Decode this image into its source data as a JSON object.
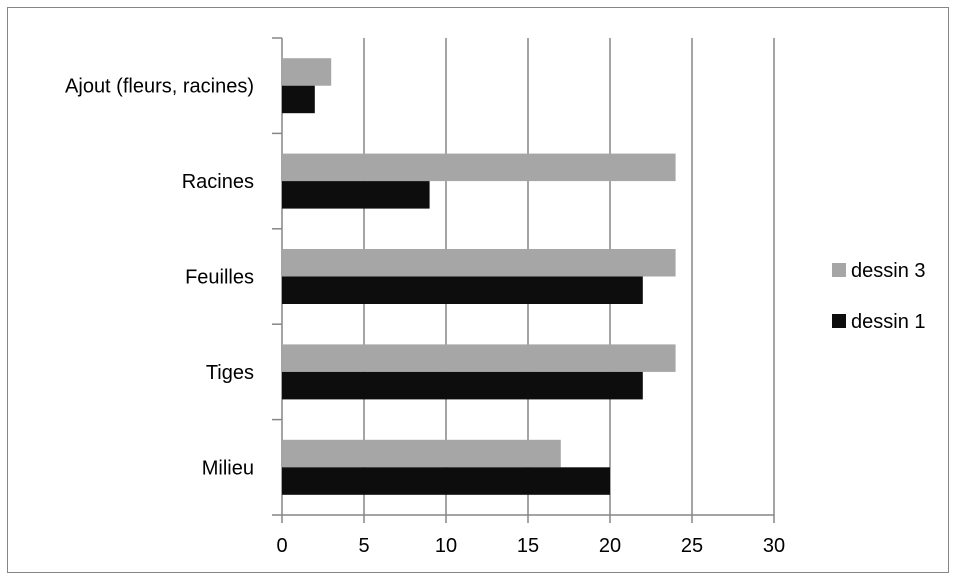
{
  "chart_data": {
    "type": "bar",
    "orientation": "horizontal",
    "categories": [
      "Milieu",
      "Tiges",
      "Feuilles",
      "Racines",
      "Ajout (fleurs, racines)"
    ],
    "series": [
      {
        "name": "dessin 1",
        "values": [
          20,
          22,
          22,
          9,
          2
        ],
        "color": "#0d0d0d"
      },
      {
        "name": "dessin 3",
        "values": [
          17,
          24,
          24,
          24,
          3
        ],
        "color": "#a6a6a6"
      }
    ],
    "xlim": [
      0,
      30
    ],
    "xticks": [
      "0",
      "5",
      "10",
      "15",
      "20",
      "25",
      "30"
    ],
    "grid": true,
    "legend_position": "right"
  }
}
